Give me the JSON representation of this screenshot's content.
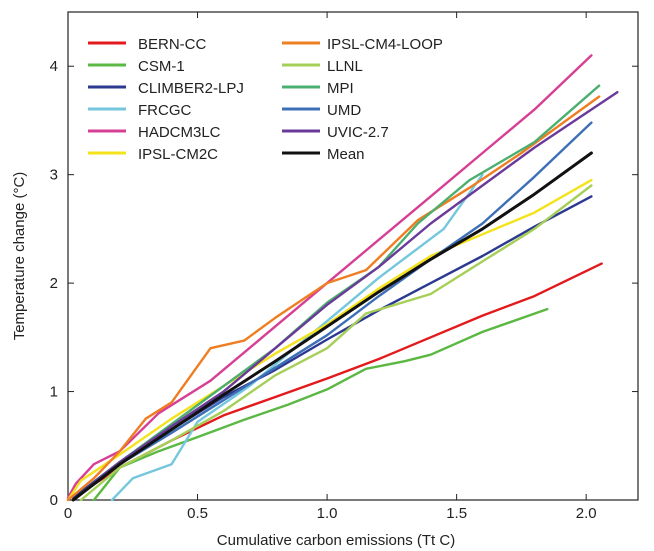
{
  "chart_data": {
    "type": "line",
    "title": "",
    "xlabel": "Cumulative carbon emissions (Tt C)",
    "ylabel": "Temperature change (°C)",
    "xlim": [
      0,
      2.2
    ],
    "ylim": [
      0,
      4.5
    ],
    "xticks": [
      0,
      0.5,
      1.0,
      1.5,
      2.0
    ],
    "xtick_labels": [
      "0",
      "0.5",
      "1.0",
      "1.5",
      "2.0"
    ],
    "yticks": [
      0,
      1,
      2,
      3,
      4
    ],
    "ytick_labels": [
      "0",
      "1",
      "2",
      "3",
      "4"
    ],
    "grid": false,
    "legend_position": "top-left",
    "series": [
      {
        "name": "BERN-CC",
        "color": "#e31a1c",
        "points": [
          [
            0.02,
            0.02
          ],
          [
            0.2,
            0.3
          ],
          [
            0.4,
            0.55
          ],
          [
            0.6,
            0.78
          ],
          [
            0.8,
            0.95
          ],
          [
            1.0,
            1.12
          ],
          [
            1.2,
            1.3
          ],
          [
            1.4,
            1.5
          ],
          [
            1.6,
            1.7
          ],
          [
            1.8,
            1.88
          ],
          [
            2.06,
            2.18
          ]
        ]
      },
      {
        "name": "CSM-1",
        "color": "#5ab843",
        "points": [
          [
            0.1,
            0.0
          ],
          [
            0.2,
            0.3
          ],
          [
            0.35,
            0.45
          ],
          [
            0.5,
            0.58
          ],
          [
            0.68,
            0.74
          ],
          [
            0.85,
            0.88
          ],
          [
            1.0,
            1.02
          ],
          [
            1.15,
            1.21
          ],
          [
            1.3,
            1.28
          ],
          [
            1.4,
            1.34
          ],
          [
            1.6,
            1.55
          ],
          [
            1.85,
            1.76
          ]
        ]
      },
      {
        "name": "CLIMBER2-LPJ",
        "color": "#2b3990",
        "points": [
          [
            0.02,
            0.02
          ],
          [
            0.2,
            0.35
          ],
          [
            0.4,
            0.65
          ],
          [
            0.6,
            0.95
          ],
          [
            0.8,
            1.2
          ],
          [
            1.0,
            1.48
          ],
          [
            1.2,
            1.75
          ],
          [
            1.4,
            2.0
          ],
          [
            1.6,
            2.25
          ],
          [
            1.8,
            2.52
          ],
          [
            2.02,
            2.8
          ]
        ]
      },
      {
        "name": "FRCGC",
        "color": "#74c7dc",
        "points": [
          [
            0.17,
            0.0
          ],
          [
            0.25,
            0.2
          ],
          [
            0.4,
            0.33
          ],
          [
            0.5,
            0.72
          ],
          [
            0.7,
            1.05
          ],
          [
            0.85,
            1.35
          ],
          [
            1.0,
            1.65
          ],
          [
            1.2,
            2.05
          ],
          [
            1.45,
            2.5
          ],
          [
            1.6,
            3.0
          ]
        ]
      },
      {
        "name": "HADCM3LC",
        "color": "#d63f94",
        "points": [
          [
            0.0,
            0.02
          ],
          [
            0.03,
            0.15
          ],
          [
            0.1,
            0.33
          ],
          [
            0.2,
            0.45
          ],
          [
            0.35,
            0.8
          ],
          [
            0.55,
            1.1
          ],
          [
            0.75,
            1.5
          ],
          [
            1.0,
            2.0
          ],
          [
            1.2,
            2.4
          ],
          [
            1.4,
            2.8
          ],
          [
            1.6,
            3.2
          ],
          [
            1.8,
            3.6
          ],
          [
            2.02,
            4.1
          ]
        ]
      },
      {
        "name": "IPSL-CM2C",
        "color": "#f4e31a",
        "points": [
          [
            0.0,
            0.0
          ],
          [
            0.05,
            0.18
          ],
          [
            0.2,
            0.42
          ],
          [
            0.4,
            0.75
          ],
          [
            0.6,
            1.05
          ],
          [
            0.8,
            1.35
          ],
          [
            1.0,
            1.62
          ],
          [
            1.2,
            1.95
          ],
          [
            1.4,
            2.25
          ],
          [
            1.6,
            2.45
          ],
          [
            1.8,
            2.65
          ],
          [
            2.02,
            2.95
          ]
        ]
      },
      {
        "name": "IPSL-CM4-LOOP",
        "color": "#ef7d22",
        "points": [
          [
            0.0,
            0.0
          ],
          [
            0.1,
            0.2
          ],
          [
            0.2,
            0.45
          ],
          [
            0.3,
            0.75
          ],
          [
            0.4,
            0.9
          ],
          [
            0.55,
            1.4
          ],
          [
            0.68,
            1.47
          ],
          [
            0.8,
            1.68
          ],
          [
            1.0,
            2.0
          ],
          [
            1.15,
            2.12
          ],
          [
            1.35,
            2.58
          ],
          [
            1.55,
            2.88
          ],
          [
            1.75,
            3.2
          ],
          [
            2.05,
            3.72
          ]
        ]
      },
      {
        "name": "LLNL",
        "color": "#a6cf58",
        "points": [
          [
            0.05,
            0.0
          ],
          [
            0.2,
            0.3
          ],
          [
            0.4,
            0.55
          ],
          [
            0.6,
            0.82
          ],
          [
            0.8,
            1.15
          ],
          [
            1.0,
            1.4
          ],
          [
            1.15,
            1.72
          ],
          [
            1.4,
            1.9
          ],
          [
            1.6,
            2.2
          ],
          [
            1.8,
            2.5
          ],
          [
            2.02,
            2.9
          ]
        ]
      },
      {
        "name": "MPI",
        "color": "#4caf70",
        "points": [
          [
            0.02,
            0.0
          ],
          [
            0.2,
            0.35
          ],
          [
            0.4,
            0.7
          ],
          [
            0.6,
            1.05
          ],
          [
            0.8,
            1.4
          ],
          [
            1.0,
            1.82
          ],
          [
            1.2,
            2.15
          ],
          [
            1.35,
            2.55
          ],
          [
            1.55,
            2.95
          ],
          [
            1.8,
            3.3
          ],
          [
            2.05,
            3.82
          ]
        ]
      },
      {
        "name": "UMD",
        "color": "#3d6fb6",
        "points": [
          [
            0.02,
            0.0
          ],
          [
            0.2,
            0.33
          ],
          [
            0.4,
            0.62
          ],
          [
            0.6,
            0.92
          ],
          [
            0.8,
            1.22
          ],
          [
            1.0,
            1.52
          ],
          [
            1.2,
            1.88
          ],
          [
            1.4,
            2.22
          ],
          [
            1.6,
            2.55
          ],
          [
            1.8,
            2.98
          ],
          [
            2.02,
            3.48
          ]
        ]
      },
      {
        "name": "UVIC-2.7",
        "color": "#6a3a9a",
        "points": [
          [
            0.02,
            0.0
          ],
          [
            0.2,
            0.35
          ],
          [
            0.4,
            0.68
          ],
          [
            0.6,
            1.0
          ],
          [
            0.8,
            1.4
          ],
          [
            1.0,
            1.8
          ],
          [
            1.2,
            2.15
          ],
          [
            1.4,
            2.55
          ],
          [
            1.6,
            2.9
          ],
          [
            1.8,
            3.25
          ],
          [
            2.12,
            3.76
          ]
        ]
      },
      {
        "name": "Mean",
        "color": "#111111",
        "points": [
          [
            0.02,
            0.0
          ],
          [
            0.2,
            0.33
          ],
          [
            0.4,
            0.65
          ],
          [
            0.6,
            0.97
          ],
          [
            0.8,
            1.28
          ],
          [
            1.0,
            1.6
          ],
          [
            1.2,
            1.92
          ],
          [
            1.4,
            2.22
          ],
          [
            1.6,
            2.5
          ],
          [
            1.8,
            2.82
          ],
          [
            2.02,
            3.2
          ]
        ]
      }
    ]
  }
}
